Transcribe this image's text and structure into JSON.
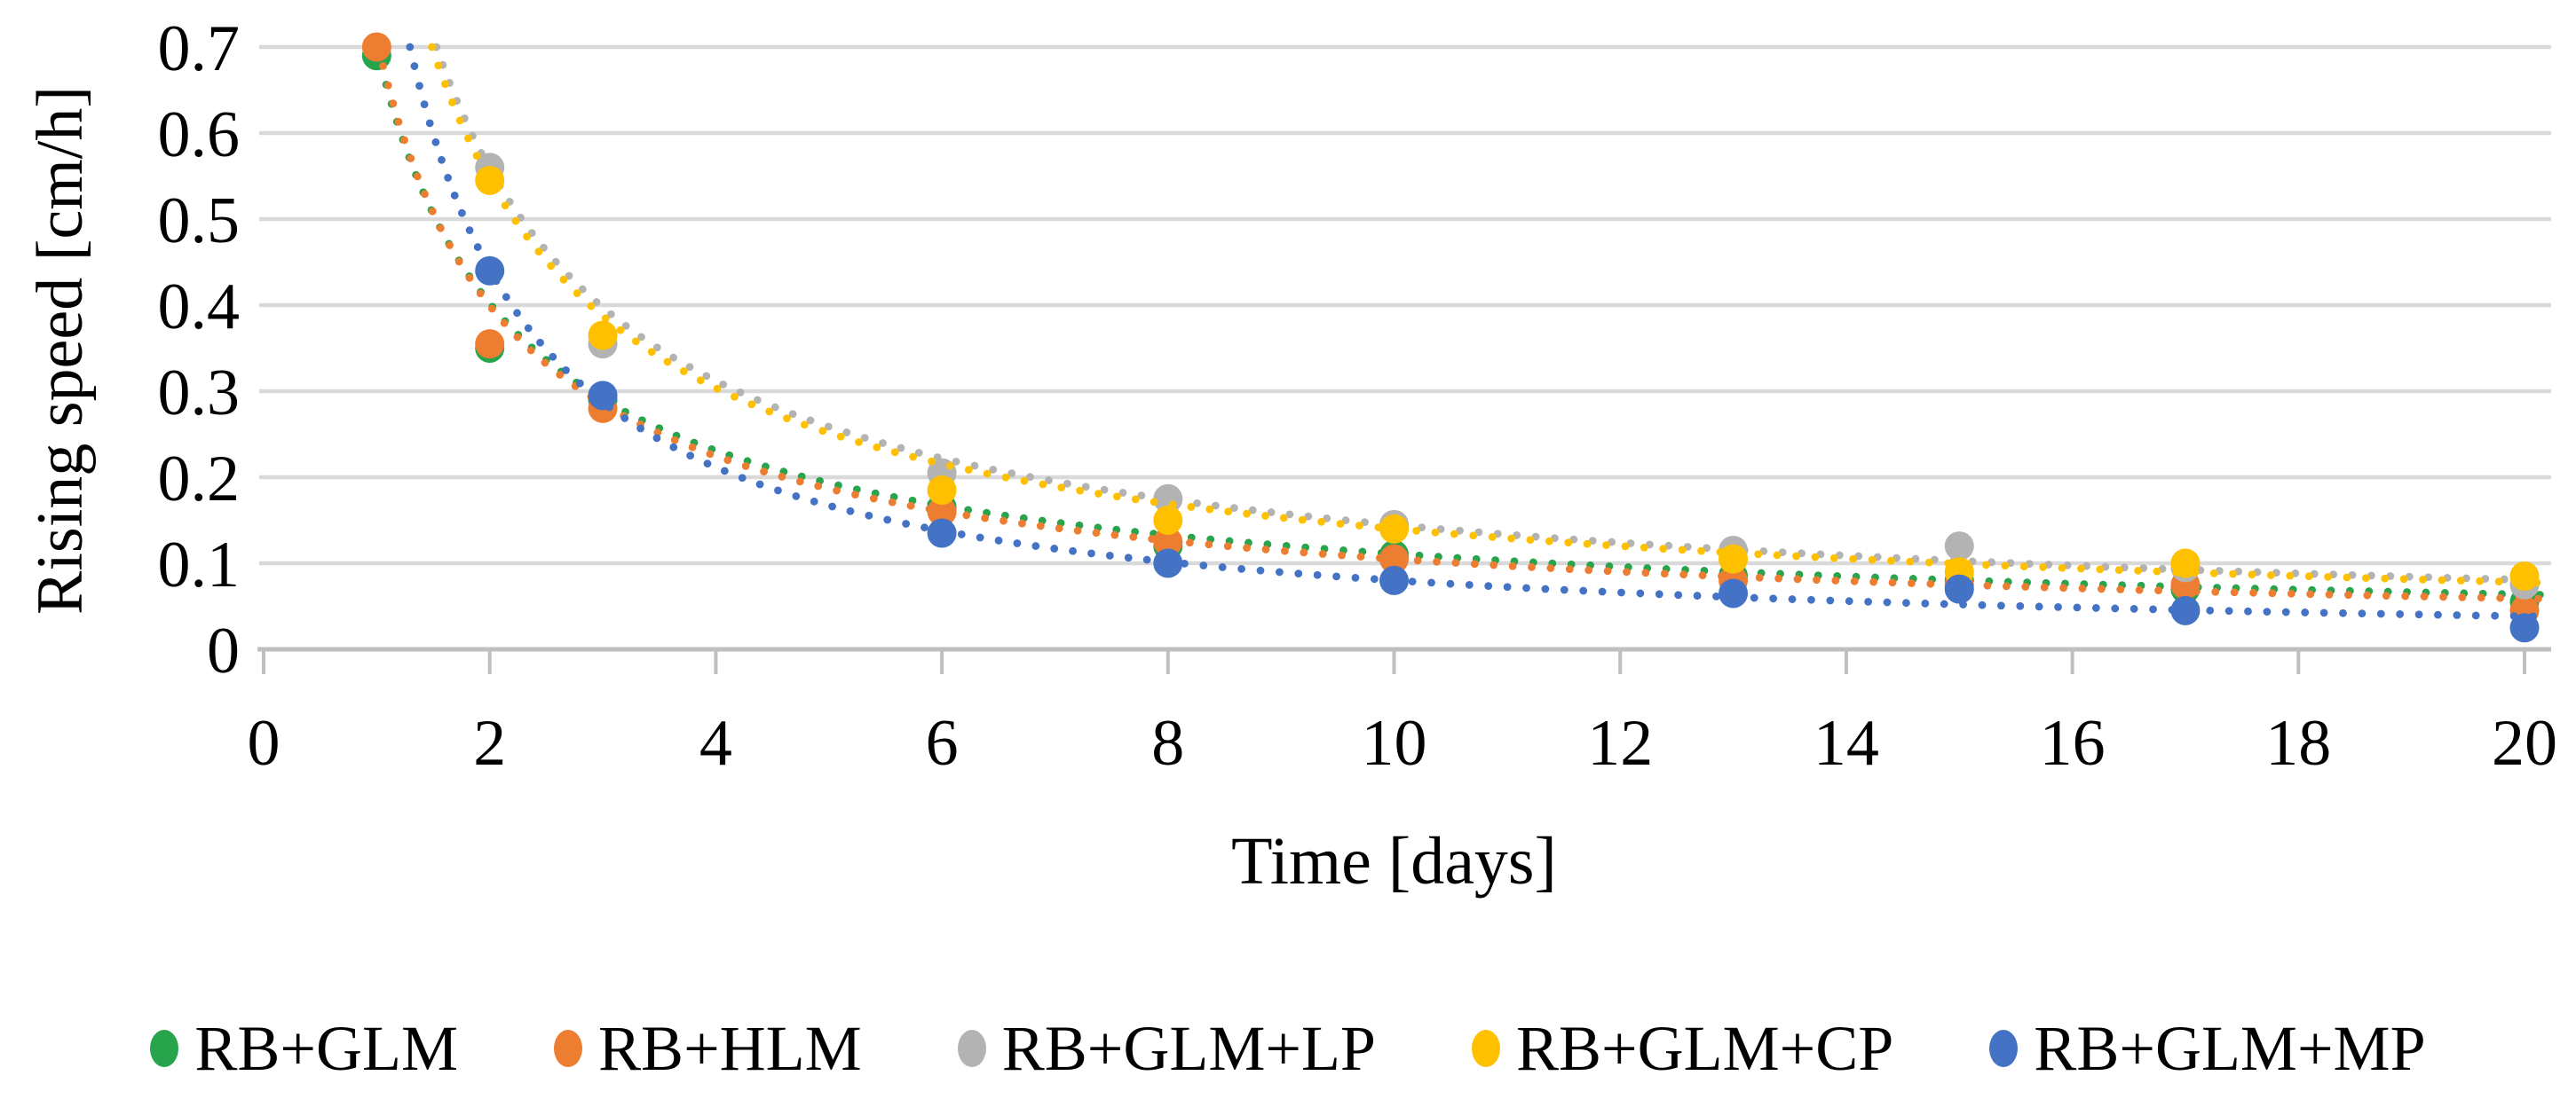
{
  "chart_data": {
    "type": "scatter",
    "title": "",
    "xlabel": "Time [days]",
    "ylabel": "Rising speed [cm/h]",
    "xlim": [
      0,
      20
    ],
    "ylim": [
      0,
      0.7
    ],
    "x_ticks": [
      "0",
      "2",
      "4",
      "6",
      "8",
      "10",
      "12",
      "14",
      "16",
      "18",
      "20"
    ],
    "y_ticks": [
      "0",
      "0.1",
      "0.2",
      "0.3",
      "0.4",
      "0.5",
      "0.6",
      "0.7"
    ],
    "grid": "horizontal",
    "legend_position": "bottom",
    "marker_style": "filled-circle",
    "trend_style": "dotted-power-curve",
    "colors": {
      "gridline": "#D9D9D9",
      "axis_line": "#BFBFBF",
      "text": "#000000",
      "background": "#FFFFFF"
    },
    "series": [
      {
        "name": "RB+GLM",
        "color": "#28A44D",
        "points": [
          [
            1,
            0.69
          ],
          [
            2,
            0.35
          ],
          [
            3,
            0.29
          ],
          [
            6,
            0.165
          ],
          [
            8,
            0.12
          ],
          [
            10,
            0.11
          ],
          [
            13,
            0.085
          ],
          [
            15,
            0.08
          ],
          [
            17,
            0.07
          ],
          [
            20,
            0.055
          ]
        ],
        "trend": {
          "type": "power",
          "a": 0.7,
          "b": -0.8
        }
      },
      {
        "name": "RB+HLM",
        "color": "#ED7D31",
        "points": [
          [
            1,
            0.7
          ],
          [
            2,
            0.355
          ],
          [
            3,
            0.28
          ],
          [
            6,
            0.16
          ],
          [
            8,
            0.125
          ],
          [
            10,
            0.105
          ],
          [
            13,
            0.08
          ],
          [
            15,
            0.075
          ],
          [
            17,
            0.075
          ],
          [
            20,
            0.045
          ]
        ],
        "trend": {
          "type": "power",
          "a": 0.71,
          "b": -0.83
        }
      },
      {
        "name": "RB+GLM+LP",
        "color": "#B3B3B3",
        "points": [
          [
            2,
            0.56
          ],
          [
            3,
            0.355
          ],
          [
            6,
            0.205
          ],
          [
            8,
            0.175
          ],
          [
            10,
            0.145
          ],
          [
            13,
            0.115
          ],
          [
            15,
            0.12
          ],
          [
            17,
            0.095
          ],
          [
            20,
            0.075
          ]
        ],
        "trend": {
          "type": "power",
          "a": 1.0,
          "b": -0.84
        }
      },
      {
        "name": "RB+GLM+CP",
        "color": "#FFC000",
        "points": [
          [
            2,
            0.545
          ],
          [
            3,
            0.365
          ],
          [
            6,
            0.185
          ],
          [
            8,
            0.15
          ],
          [
            10,
            0.14
          ],
          [
            13,
            0.105
          ],
          [
            15,
            0.09
          ],
          [
            17,
            0.1
          ],
          [
            20,
            0.085
          ]
        ],
        "trend": {
          "type": "power",
          "a": 0.98,
          "b": -0.845
        }
      },
      {
        "name": "RB+GLM+MP",
        "color": "#4472C4",
        "points": [
          [
            2,
            0.44
          ],
          [
            3,
            0.295
          ],
          [
            6,
            0.135
          ],
          [
            8,
            0.1
          ],
          [
            10,
            0.08
          ],
          [
            13,
            0.065
          ],
          [
            15,
            0.07
          ],
          [
            17,
            0.045
          ],
          [
            20,
            0.025
          ]
        ],
        "trend": {
          "type": "power",
          "a": 0.92,
          "b": -1.06
        }
      }
    ]
  }
}
